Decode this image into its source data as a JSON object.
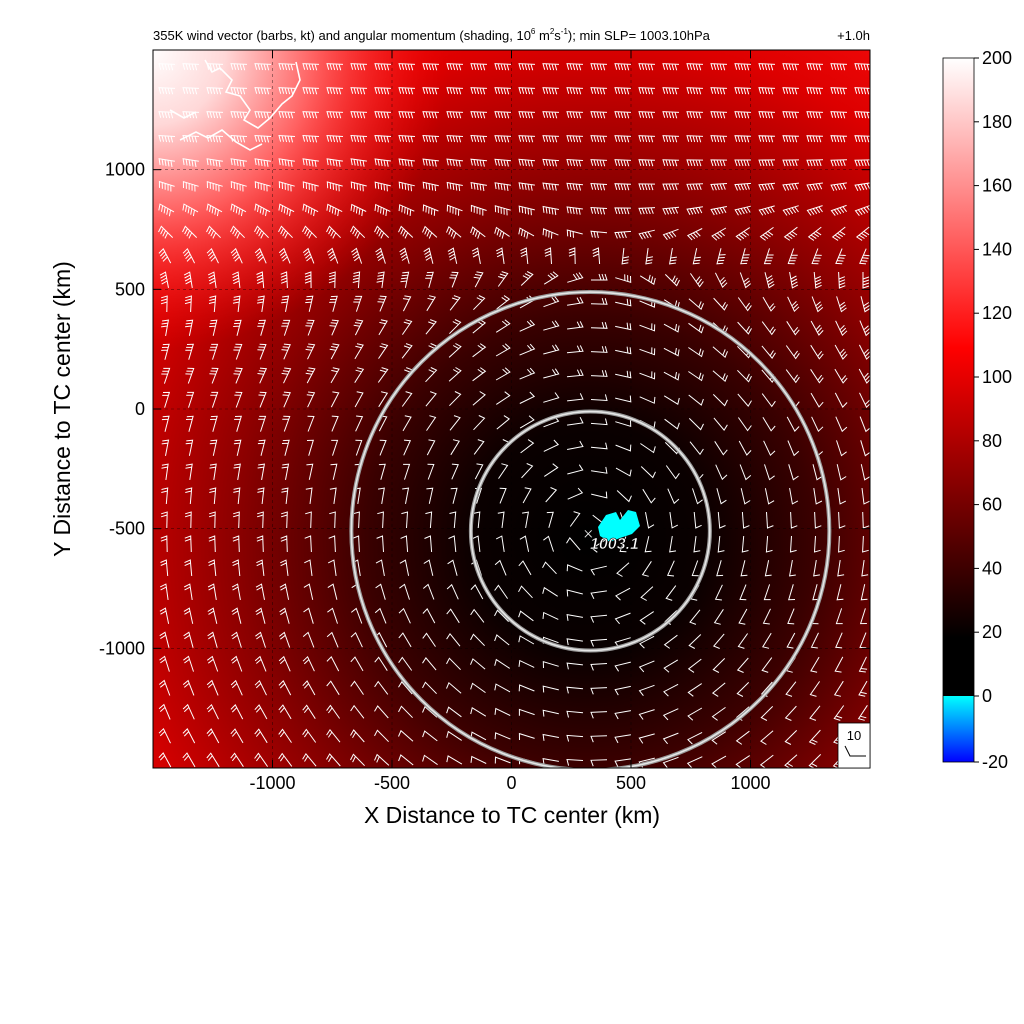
{
  "chart_data": {
    "type": "heatmap",
    "title_main": "355K wind vector (barbs, kt) and angular momentum (shading, 10",
    "title_exp1": "6",
    "title_m": " m",
    "title_exp2": "2",
    "title_s": "s",
    "title_exp3": "-1",
    "title_rest": "); min SLP= 1003.10hPa",
    "time_label": "+1.0h",
    "xlabel": "X Distance to TC center (km)",
    "ylabel": "Y Distance to TC center (km)",
    "xlim": [
      -1500,
      1500
    ],
    "ylim": [
      -1500,
      1500
    ],
    "xticks": [
      -1000,
      -500,
      0,
      500,
      1000
    ],
    "xtick_labels": [
      "-1000",
      "-500",
      "0",
      "500",
      "1000"
    ],
    "yticks": [
      1000,
      500,
      0,
      -500,
      -1000
    ],
    "ytick_labels": [
      "1000",
      "500",
      "0",
      "-500",
      "-1000"
    ],
    "grid": true,
    "colorbar": {
      "min": -20,
      "max": 200,
      "ticks": [
        200,
        180,
        160,
        140,
        120,
        100,
        80,
        60,
        40,
        20,
        0,
        -20
      ],
      "tick_labels": [
        "200",
        "180",
        "160",
        "140",
        "120",
        "100",
        "80",
        "60",
        "40",
        "20",
        "0",
        "-20"
      ],
      "colors": {
        "minus20": "#0000ff",
        "zero": "#00ffff",
        "zero_black": "#000000",
        "hundred": "#ff0000",
        "twohundred": "#ffffff"
      }
    },
    "tc_center_marker": {
      "x": 300,
      "y": -500,
      "symbol": "×"
    },
    "min_slp_label": "1003.1",
    "range_rings_km": [
      500,
      1000
    ],
    "range_ring_center": {
      "x": 330,
      "y": -510
    },
    "barb_reference_speed": "10",
    "momentum_field_description": "low angular momentum near center (x≈330, y≈-510), increasing outward, highest toward upper-left",
    "wind_barbs": "cyclonic circulation around center with northwesterly/westerly flow in the upper region"
  }
}
